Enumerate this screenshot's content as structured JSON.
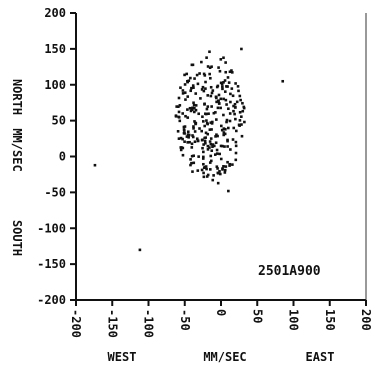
{
  "chart_data": {
    "type": "scatter",
    "title": "",
    "xlim": [
      -200,
      200
    ],
    "ylim": [
      -200,
      200
    ],
    "grid": false,
    "x_ticks": [
      -200,
      -150,
      -100,
      -50,
      0,
      50,
      100,
      150,
      200
    ],
    "y_ticks": [
      200,
      150,
      100,
      50,
      0,
      -50,
      -100,
      -150,
      -200
    ],
    "x_tick_labels": [
      "-200",
      "-150",
      "-100",
      "-50",
      "0",
      "50",
      "100",
      "150",
      "200"
    ],
    "y_tick_labels": [
      "200",
      "150",
      "100",
      "50",
      "0",
      "-50",
      "-100",
      "-150",
      "-200"
    ],
    "xlabel": {
      "left": "WEST",
      "center": "MM/SEC",
      "right": "EAST"
    },
    "ylabel": {
      "top": "NORTH",
      "center": "MM/SEC",
      "bottom": "SOUTH"
    },
    "annotation": "2501A900",
    "outliers": [
      {
        "x": -174,
        "y": -12
      },
      {
        "x": -112,
        "y": -130
      },
      {
        "x": 28,
        "y": 150
      },
      {
        "x": 85,
        "y": 105
      },
      {
        "x": 10,
        "y": -48
      },
      {
        "x": -4,
        "y": -37
      }
    ],
    "cluster": {
      "note": "dense cloud of velocity points",
      "x_range": [
        -60,
        35
      ],
      "y_range": [
        -35,
        150
      ],
      "center": [
        -15,
        55
      ],
      "approx_count": 300
    }
  }
}
